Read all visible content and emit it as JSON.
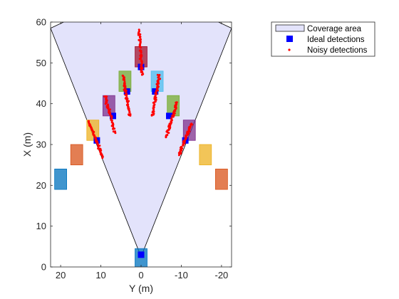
{
  "chart_data": {
    "type": "scatter",
    "xlabel": "Y (m)",
    "ylabel": "X (m)",
    "x_axis": {
      "data": "Y",
      "range": [
        22.5,
        -22.5
      ],
      "reversed": true,
      "ticks": [
        20,
        10,
        0,
        -10,
        -20
      ]
    },
    "y_axis": {
      "data": "X",
      "range": [
        0,
        60
      ],
      "ticks": [
        0,
        10,
        20,
        30,
        40,
        50,
        60
      ]
    },
    "grid": false,
    "legend": {
      "placement": "outside-top-right",
      "entries": [
        {
          "label": "Coverage area",
          "marker": "patch",
          "color": "#e3e3fb"
        },
        {
          "label": "Ideal detections",
          "marker": "square",
          "color": "#0000ff"
        },
        {
          "label": "Noisy detections",
          "marker": "dot",
          "color": "#ff0000"
        }
      ]
    },
    "coverage_area": {
      "apex": [
        0,
        2.5
      ],
      "polygon_yx": [
        [
          0,
          2.5
        ],
        [
          22.5,
          58.5
        ],
        [
          16,
          61.5
        ],
        [
          0,
          63.5
        ],
        [
          -16,
          61.5
        ],
        [
          -22.5,
          58.5
        ]
      ]
    },
    "objects": [
      {
        "y": 20,
        "x": 21.5,
        "color": "#0072bd"
      },
      {
        "y": 16,
        "x": 27.5,
        "color": "#d95319"
      },
      {
        "y": 12,
        "x": 33.5,
        "color": "#edb120"
      },
      {
        "y": 8,
        "x": 39.5,
        "color": "#7e2f8e"
      },
      {
        "y": 4,
        "x": 45.5,
        "color": "#77ac30"
      },
      {
        "y": 0,
        "x": 51.5,
        "color": "#a2142f"
      },
      {
        "y": -4,
        "x": 45.5,
        "color": "#4dbeee"
      },
      {
        "y": -8,
        "x": 39.5,
        "color": "#77ac30"
      },
      {
        "y": -12,
        "x": 33.5,
        "color": "#7e2f8e"
      },
      {
        "y": -16,
        "x": 27.5,
        "color": "#edb120"
      },
      {
        "y": -20,
        "x": 21.5,
        "color": "#d95319"
      },
      {
        "y": 0,
        "x": 2,
        "color": "#0072bd"
      }
    ],
    "ideal_detections": [
      {
        "y": 11,
        "x": 31
      },
      {
        "y": 7,
        "x": 37
      },
      {
        "y": 3.5,
        "x": 43
      },
      {
        "y": 0,
        "x": 49
      },
      {
        "y": -3.5,
        "x": 43
      },
      {
        "y": -7,
        "x": 37
      },
      {
        "y": -11,
        "x": 31
      },
      {
        "y": 0,
        "x": 3
      }
    ],
    "noisy_detection_streaks": [
      {
        "from": [
          13,
          35.5
        ],
        "to": [
          9.5,
          27
        ]
      },
      {
        "from": [
          9,
          42
        ],
        "to": [
          6.5,
          33
        ]
      },
      {
        "from": [
          4.5,
          47
        ],
        "to": [
          2.8,
          37
        ]
      },
      {
        "from": [
          0.5,
          58
        ],
        "to": [
          -0.3,
          47
        ]
      },
      {
        "from": [
          -4.5,
          47
        ],
        "to": [
          -2.8,
          37
        ]
      },
      {
        "from": [
          -9,
          40.5
        ],
        "to": [
          -6.3,
          32
        ]
      },
      {
        "from": [
          -12.5,
          35
        ],
        "to": [
          -9.5,
          27.5
        ]
      }
    ]
  }
}
